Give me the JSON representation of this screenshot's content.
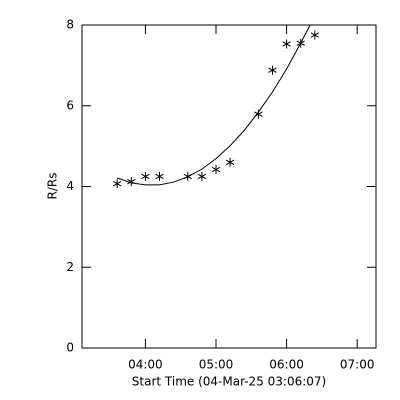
{
  "chart_data": {
    "type": "scatter",
    "xlabel": "Start Time (04-Mar-25 03:06:07)",
    "ylabel": "R/Rs",
    "xlim": [
      186.1,
      436
    ],
    "ylim": [
      0,
      8
    ],
    "xticks": [
      {
        "value": 240,
        "label": "04:00"
      },
      {
        "value": 300,
        "label": "05:00"
      },
      {
        "value": 360,
        "label": "06:00"
      },
      {
        "value": 420,
        "label": "07:00"
      }
    ],
    "yticks": [
      0,
      2,
      4,
      6,
      8
    ],
    "series": [
      {
        "type": "scatter",
        "marker": "asterisk",
        "color": "#000000",
        "x": [
          216,
          228,
          240,
          252,
          276,
          288,
          300,
          312,
          336,
          348,
          360,
          372,
          384
        ],
        "values": [
          4.07,
          4.12,
          4.25,
          4.25,
          4.25,
          4.25,
          4.42,
          4.6,
          5.79,
          6.88,
          7.53,
          7.55,
          7.75
        ]
      },
      {
        "type": "line",
        "color": "#000000",
        "x": [
          216,
          228,
          240,
          252,
          264,
          276,
          288,
          300,
          312,
          324,
          336,
          348,
          360,
          372,
          380
        ],
        "values": [
          4.21,
          4.09,
          4.04,
          4.04,
          4.11,
          4.24,
          4.43,
          4.69,
          5.01,
          5.39,
          5.84,
          6.34,
          6.91,
          7.55,
          8.0
        ]
      }
    ]
  }
}
